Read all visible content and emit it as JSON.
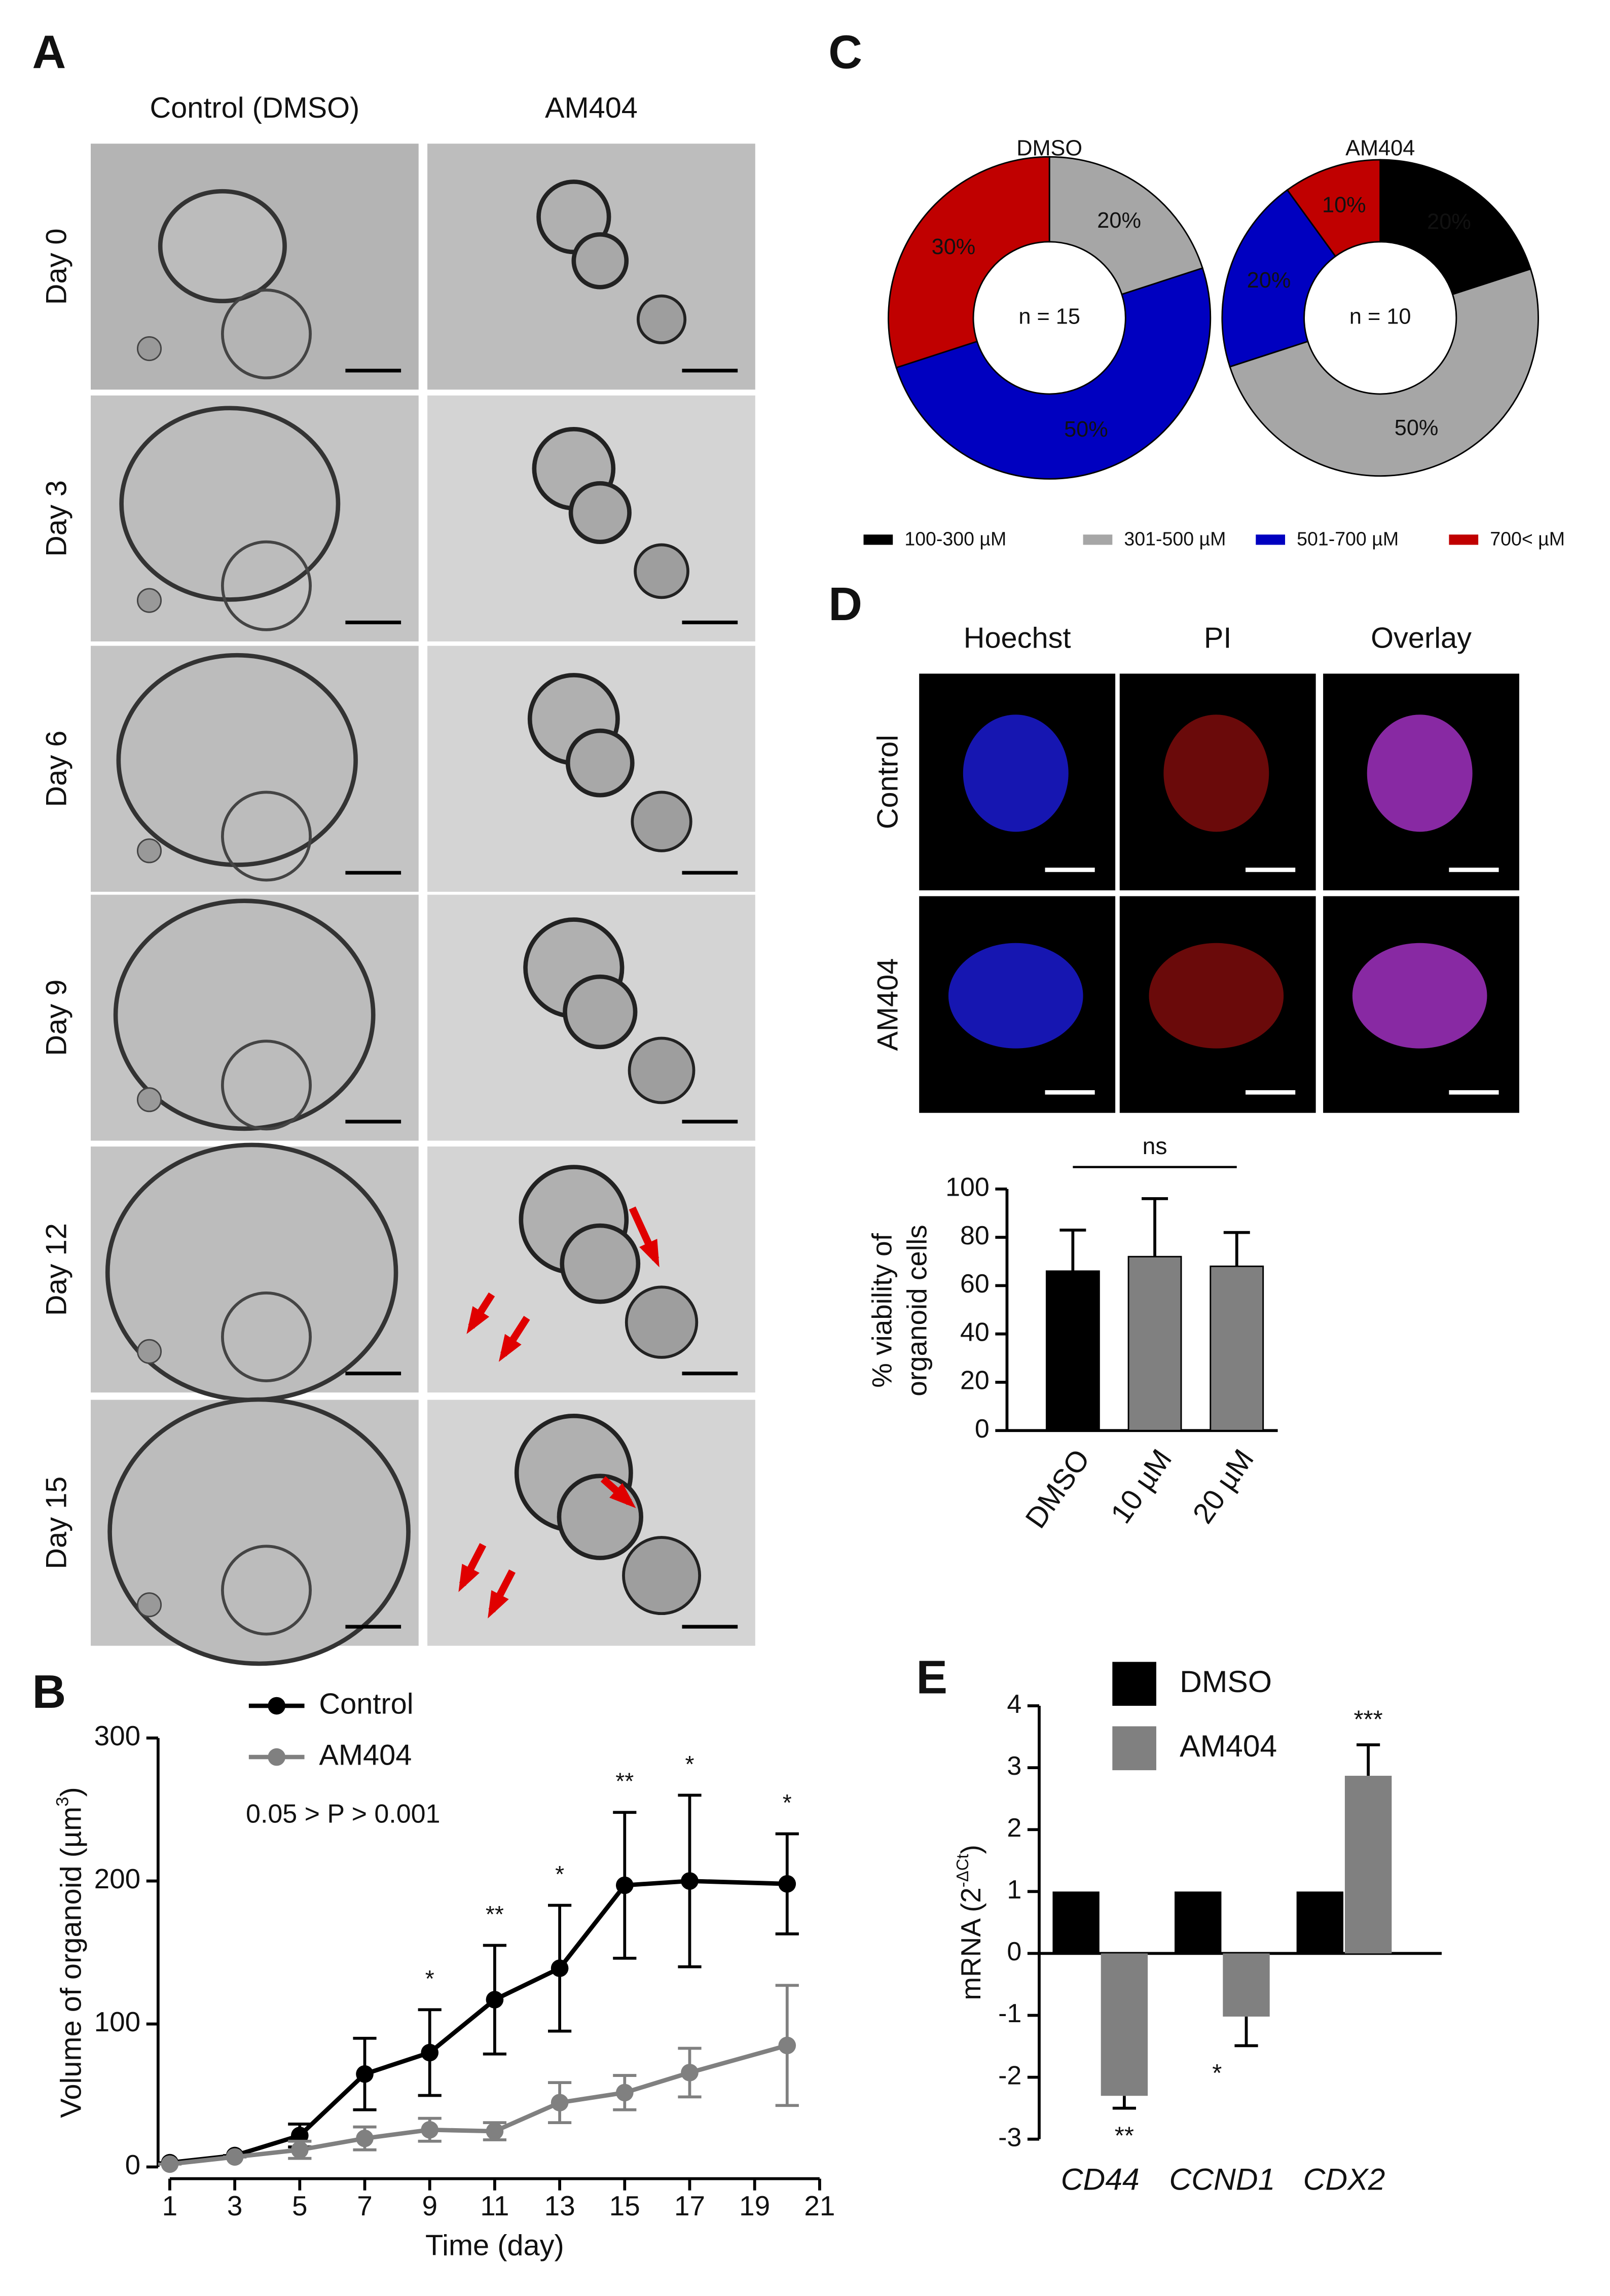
{
  "panel_labels": [
    "A",
    "B",
    "C",
    "D",
    "E"
  ],
  "panel_a": {
    "column_titles": [
      "Control (DMSO)",
      "AM404"
    ],
    "row_labels": [
      "Day 0",
      "Day 3",
      "Day 6",
      "Day 9",
      "Day 12",
      "Day 15"
    ]
  },
  "panel_d_images": {
    "column_titles": [
      "Hoechst",
      "PI",
      "Overlay"
    ],
    "row_labels": [
      "Control",
      "AM404"
    ]
  },
  "panel_c_legend": [
    {
      "name": "100-300 µM",
      "color": "#000000"
    },
    {
      "name": "301-500 µM",
      "color": "#a6a6a6"
    },
    {
      "name": "501-700 µM",
      "color": "#0000c0"
    },
    {
      "name": "700< µM",
      "color": "#c00000"
    }
  ],
  "chart_data": [
    {
      "type": "line",
      "x": [
        1,
        3,
        5,
        7,
        9,
        11,
        13,
        15,
        17,
        20
      ],
      "xlim": [
        1,
        21
      ],
      "xticks": [
        1,
        3,
        5,
        7,
        9,
        11,
        13,
        15,
        17,
        19,
        21
      ],
      "ylim": [
        0,
        300
      ],
      "yticks": [
        0,
        100,
        200,
        300
      ],
      "x_label": "Time (day)",
      "y_label": [
        "Volume of organoid (µm",
        "3",
        ")"
      ],
      "annotation": "0.05 > P > 0.001",
      "series": [
        {
          "name": "Control",
          "color": "#000000",
          "values": [
            3,
            8,
            22,
            65,
            80,
            117,
            139,
            197,
            200,
            198
          ],
          "errors": [
            0,
            0,
            8,
            25,
            30,
            38,
            44,
            51,
            60,
            35
          ]
        },
        {
          "name": "AM404",
          "color": "#808080",
          "values": [
            2,
            7,
            12,
            20,
            26,
            25,
            45,
            52,
            66,
            85
          ],
          "errors": [
            0,
            0,
            6,
            8,
            8,
            6,
            14,
            12,
            17,
            42
          ]
        }
      ],
      "significance": {
        "x": [
          9,
          11,
          13,
          15,
          17,
          20
        ],
        "labels": [
          "*",
          "**",
          "*",
          "**",
          "*",
          "*"
        ]
      }
    },
    {
      "type": "pie",
      "title": "DMSO",
      "center_label": "n = 15",
      "values": [
        20,
        50,
        30
      ],
      "value_labels": [
        "20%",
        "50%",
        "30%"
      ],
      "colors": [
        "#a6a6a6",
        "#0000c0",
        "#c00000"
      ]
    },
    {
      "type": "pie",
      "title": "AM404",
      "center_label": "n = 10",
      "values": [
        20,
        50,
        20,
        10
      ],
      "value_labels": [
        "20%",
        "50%",
        "20%",
        "10%"
      ],
      "colors": [
        "#000000",
        "#a6a6a6",
        "#0000c0",
        "#c00000"
      ]
    },
    {
      "type": "bar",
      "categories": [
        "DMSO",
        "10 µM",
        "20 µM"
      ],
      "values": [
        66,
        72,
        68
      ],
      "errors": [
        17,
        24,
        14
      ],
      "colors": [
        "#000000",
        "#808080",
        "#808080"
      ],
      "ylim": [
        0,
        100
      ],
      "yticks": [
        0,
        20,
        40,
        60,
        80,
        100
      ],
      "y_label": [
        "% viability of",
        "organoid cells"
      ],
      "annotation": "ns"
    },
    {
      "type": "grouped_bar",
      "categories": [
        "CD44",
        "CCND1",
        "CDX2"
      ],
      "series": [
        {
          "name": "DMSO",
          "color": "#000000",
          "values": [
            1,
            1,
            1
          ]
        },
        {
          "name": "AM404",
          "color": "#808080",
          "values": [
            -2.3,
            -1.02,
            2.87
          ],
          "errors": [
            0.2,
            0.47,
            0.5
          ]
        }
      ],
      "ylim": [
        -3,
        4
      ],
      "yticks": [
        -3,
        -2,
        -1,
        0,
        1,
        2,
        3,
        4
      ],
      "y_label": [
        "mRNA (2",
        "-ΔCt",
        ")"
      ],
      "significance": [
        "**",
        "*",
        "***"
      ]
    }
  ]
}
